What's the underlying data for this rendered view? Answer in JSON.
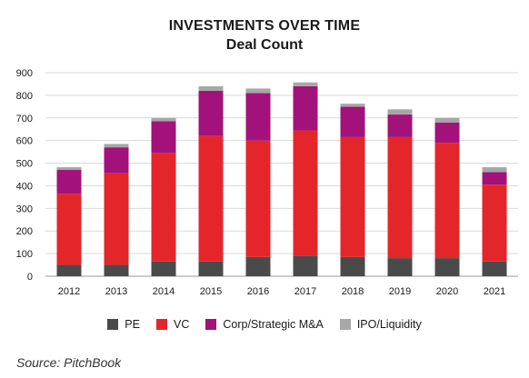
{
  "chart_data": {
    "type": "bar",
    "stacked": true,
    "title": "INVESTMENTS OVER TIME",
    "subtitle": "Deal Count",
    "categories": [
      "2012",
      "2013",
      "2014",
      "2015",
      "2016",
      "2017",
      "2018",
      "2019",
      "2020",
      "2021"
    ],
    "series": [
      {
        "name": "PE",
        "color": "#4a4a4a",
        "values": [
          50,
          50,
          65,
          65,
          85,
          90,
          85,
          80,
          80,
          65
        ]
      },
      {
        "name": "VC",
        "color": "#e4262b",
        "values": [
          315,
          405,
          480,
          555,
          515,
          555,
          530,
          535,
          510,
          340
        ]
      },
      {
        "name": "Corp/Strategic M&A",
        "color": "#a3127a",
        "values": [
          105,
          115,
          140,
          200,
          210,
          195,
          135,
          100,
          90,
          55
        ]
      },
      {
        "name": "IPO/Liquidity",
        "color": "#a7a7a7",
        "values": [
          12,
          15,
          15,
          20,
          20,
          17,
          13,
          23,
          20,
          22
        ]
      }
    ],
    "ylim": [
      0,
      900
    ],
    "yticks": [
      0,
      100,
      200,
      300,
      400,
      500,
      600,
      700,
      800,
      900
    ],
    "grid": true,
    "legend_position": "bottom"
  },
  "source": "Source: PitchBook"
}
